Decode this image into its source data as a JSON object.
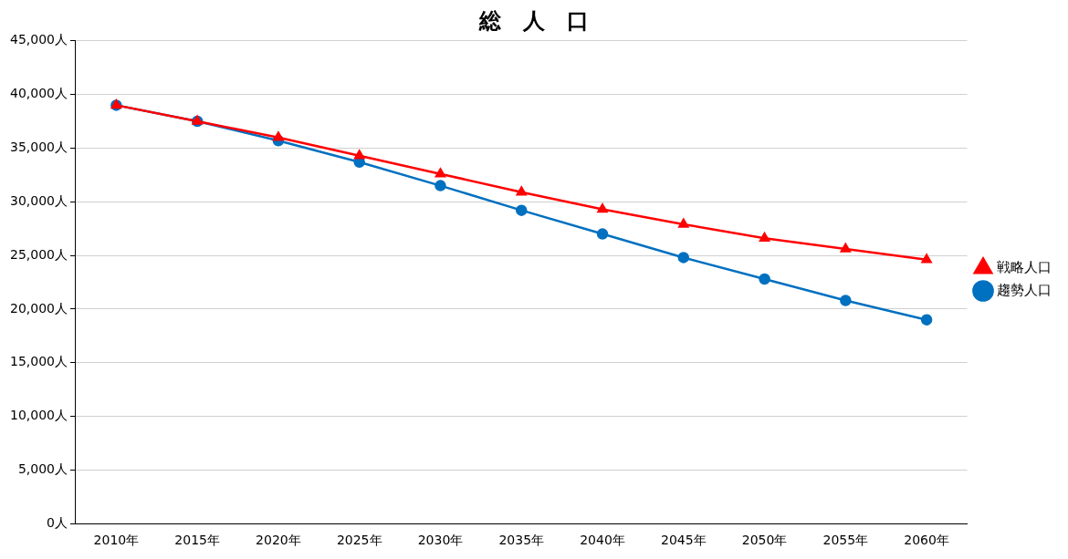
{
  "chart_data": {
    "type": "line",
    "title": "総　人　口",
    "categories": [
      "2010年",
      "2015年",
      "2020年",
      "2025年",
      "2030年",
      "2035年",
      "2040年",
      "2045年",
      "2050年",
      "2055年",
      "2060年"
    ],
    "series": [
      {
        "name": "趨勢人口",
        "color": "#0070c0",
        "marker": "circle",
        "values": [
          39000,
          37500,
          35700,
          33700,
          31500,
          29200,
          27000,
          24800,
          22800,
          20800,
          19000
        ]
      },
      {
        "name": "戦略人口",
        "color": "#ff0000",
        "marker": "triangle",
        "values": [
          39000,
          37500,
          36000,
          34300,
          32600,
          30900,
          29300,
          27900,
          26600,
          25600,
          24600
        ]
      }
    ],
    "ylim": [
      0,
      45000
    ],
    "yticks": [
      {
        "value": 0,
        "label": "0人"
      },
      {
        "value": 5000,
        "label": "5,000人"
      },
      {
        "value": 10000,
        "label": "10,000人"
      },
      {
        "value": 15000,
        "label": "15,000人"
      },
      {
        "value": 20000,
        "label": "20,000人"
      },
      {
        "value": 25000,
        "label": "25,000人"
      },
      {
        "value": 30000,
        "label": "30,000人"
      },
      {
        "value": 35000,
        "label": "35,000人"
      },
      {
        "value": 40000,
        "label": "40,000人"
      },
      {
        "value": 45000,
        "label": "45,000人"
      }
    ],
    "grid": "y",
    "legend": "right",
    "line_style": "solid"
  }
}
